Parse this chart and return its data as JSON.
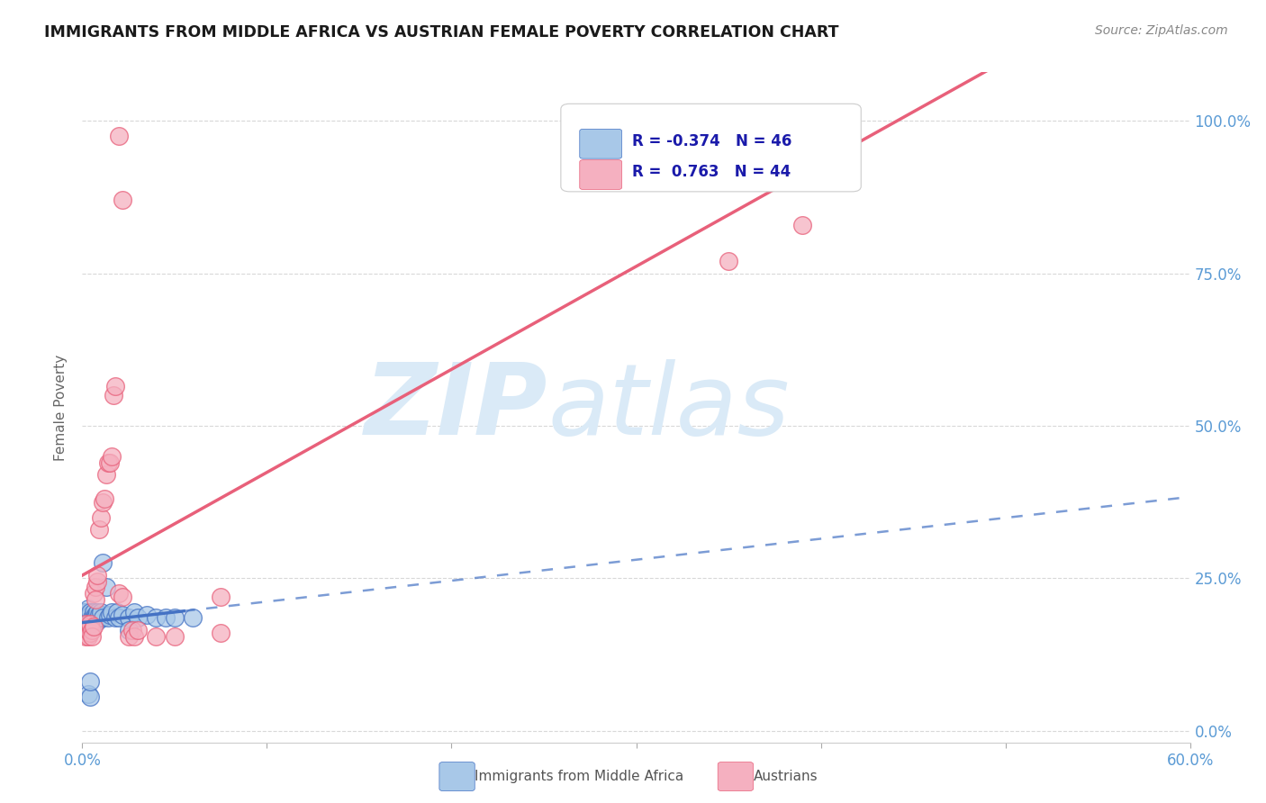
{
  "title": "IMMIGRANTS FROM MIDDLE AFRICA VS AUSTRIAN FEMALE POVERTY CORRELATION CHART",
  "source": "Source: ZipAtlas.com",
  "ylabel": "Female Poverty",
  "yticks": [
    "0.0%",
    "25.0%",
    "50.0%",
    "75.0%",
    "100.0%"
  ],
  "ytick_vals": [
    0.0,
    0.25,
    0.5,
    0.75,
    1.0
  ],
  "xlim": [
    0,
    0.6
  ],
  "ylim": [
    -0.02,
    1.08
  ],
  "blue_scatter": [
    [
      0.001,
      0.185
    ],
    [
      0.001,
      0.195
    ],
    [
      0.001,
      0.18
    ],
    [
      0.002,
      0.19
    ],
    [
      0.002,
      0.195
    ],
    [
      0.002,
      0.185
    ],
    [
      0.002,
      0.175
    ],
    [
      0.003,
      0.2
    ],
    [
      0.003,
      0.185
    ],
    [
      0.003,
      0.175
    ],
    [
      0.004,
      0.19
    ],
    [
      0.004,
      0.18
    ],
    [
      0.004,
      0.195
    ],
    [
      0.005,
      0.185
    ],
    [
      0.005,
      0.175
    ],
    [
      0.006,
      0.195
    ],
    [
      0.006,
      0.185
    ],
    [
      0.007,
      0.19
    ],
    [
      0.007,
      0.185
    ],
    [
      0.008,
      0.18
    ],
    [
      0.008,
      0.195
    ],
    [
      0.009,
      0.185
    ],
    [
      0.009,
      0.19
    ],
    [
      0.01,
      0.195
    ],
    [
      0.011,
      0.185
    ],
    [
      0.011,
      0.275
    ],
    [
      0.013,
      0.235
    ],
    [
      0.014,
      0.185
    ],
    [
      0.015,
      0.19
    ],
    [
      0.016,
      0.195
    ],
    [
      0.018,
      0.185
    ],
    [
      0.019,
      0.195
    ],
    [
      0.02,
      0.185
    ],
    [
      0.022,
      0.19
    ],
    [
      0.025,
      0.185
    ],
    [
      0.028,
      0.195
    ],
    [
      0.03,
      0.185
    ],
    [
      0.035,
      0.19
    ],
    [
      0.04,
      0.185
    ],
    [
      0.045,
      0.185
    ],
    [
      0.05,
      0.185
    ],
    [
      0.06,
      0.185
    ],
    [
      0.003,
      0.06
    ],
    [
      0.004,
      0.055
    ],
    [
      0.004,
      0.08
    ],
    [
      0.025,
      0.165
    ]
  ],
  "pink_scatter": [
    [
      0.001,
      0.16
    ],
    [
      0.001,
      0.17
    ],
    [
      0.002,
      0.165
    ],
    [
      0.002,
      0.155
    ],
    [
      0.002,
      0.175
    ],
    [
      0.003,
      0.165
    ],
    [
      0.003,
      0.155
    ],
    [
      0.004,
      0.17
    ],
    [
      0.004,
      0.16
    ],
    [
      0.004,
      0.175
    ],
    [
      0.005,
      0.165
    ],
    [
      0.005,
      0.155
    ],
    [
      0.006,
      0.17
    ],
    [
      0.006,
      0.225
    ],
    [
      0.007,
      0.235
    ],
    [
      0.007,
      0.215
    ],
    [
      0.008,
      0.245
    ],
    [
      0.008,
      0.255
    ],
    [
      0.009,
      0.33
    ],
    [
      0.01,
      0.35
    ],
    [
      0.011,
      0.375
    ],
    [
      0.012,
      0.38
    ],
    [
      0.013,
      0.42
    ],
    [
      0.014,
      0.44
    ],
    [
      0.015,
      0.44
    ],
    [
      0.016,
      0.45
    ],
    [
      0.017,
      0.55
    ],
    [
      0.018,
      0.565
    ],
    [
      0.02,
      0.225
    ],
    [
      0.022,
      0.22
    ],
    [
      0.025,
      0.155
    ],
    [
      0.027,
      0.165
    ],
    [
      0.028,
      0.155
    ],
    [
      0.03,
      0.165
    ],
    [
      0.04,
      0.155
    ],
    [
      0.05,
      0.155
    ],
    [
      0.02,
      0.975
    ],
    [
      0.022,
      0.87
    ],
    [
      0.35,
      0.77
    ],
    [
      0.375,
      1.0
    ],
    [
      0.385,
      1.0
    ],
    [
      0.39,
      0.83
    ],
    [
      0.075,
      0.22
    ],
    [
      0.075,
      0.16
    ]
  ],
  "blue_color": "#a8c8e8",
  "pink_color": "#f5b0c0",
  "blue_line_color": "#4472c4",
  "pink_line_color": "#e8607a",
  "watermark_color": "#daeaf7",
  "background_color": "#ffffff",
  "grid_color": "#d8d8d8",
  "tick_label_color": "#5b9bd5",
  "legend_text_color": "#1a1aaa",
  "source_color": "#888888",
  "ylabel_color": "#666666"
}
